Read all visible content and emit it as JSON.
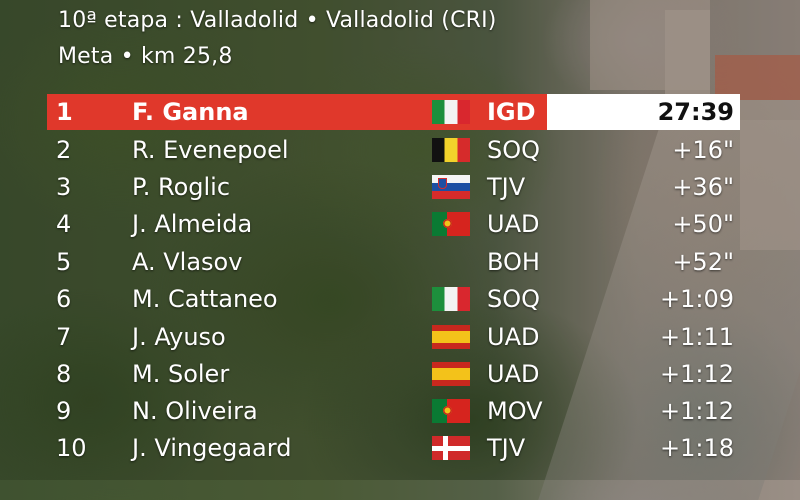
{
  "header": {
    "title": "10ª etapa : Valladolid • Valladolid (CRI)",
    "subtitle": "Meta • km 25,8"
  },
  "standings": [
    {
      "pos": "1",
      "name": "F. Ganna",
      "flag": "italy-flag",
      "team": "IGD",
      "time": "27:39"
    },
    {
      "pos": "2",
      "name": "R. Evenepoel",
      "flag": "belgium-flag",
      "team": "SOQ",
      "time": "+16\""
    },
    {
      "pos": "3",
      "name": "P. Roglic",
      "flag": "slovenia-flag",
      "team": "TJV",
      "time": "+36\""
    },
    {
      "pos": "4",
      "name": "J. Almeida",
      "flag": "portugal-flag",
      "team": "UAD",
      "time": "+50\""
    },
    {
      "pos": "5",
      "name": "A. Vlasov",
      "flag": "",
      "team": "BOH",
      "time": "+52\""
    },
    {
      "pos": "6",
      "name": "M. Cattaneo",
      "flag": "italy-flag",
      "team": "SOQ",
      "time": "+1:09"
    },
    {
      "pos": "7",
      "name": "J. Ayuso",
      "flag": "spain-flag",
      "team": "UAD",
      "time": "+1:11"
    },
    {
      "pos": "8",
      "name": "M. Soler",
      "flag": "spain-flag",
      "team": "UAD",
      "time": "+1:12"
    },
    {
      "pos": "9",
      "name": "N. Oliveira",
      "flag": "portugal-flag",
      "team": "MOV",
      "time": "+1:12"
    },
    {
      "pos": "10",
      "name": "J. Vingegaard",
      "flag": "denmark-flag",
      "team": "TJV",
      "time": "+1:18"
    }
  ],
  "colors": {
    "leader_bar": "#e0382b",
    "leader_time_box": "#ffffff",
    "text": "#ffffff"
  }
}
